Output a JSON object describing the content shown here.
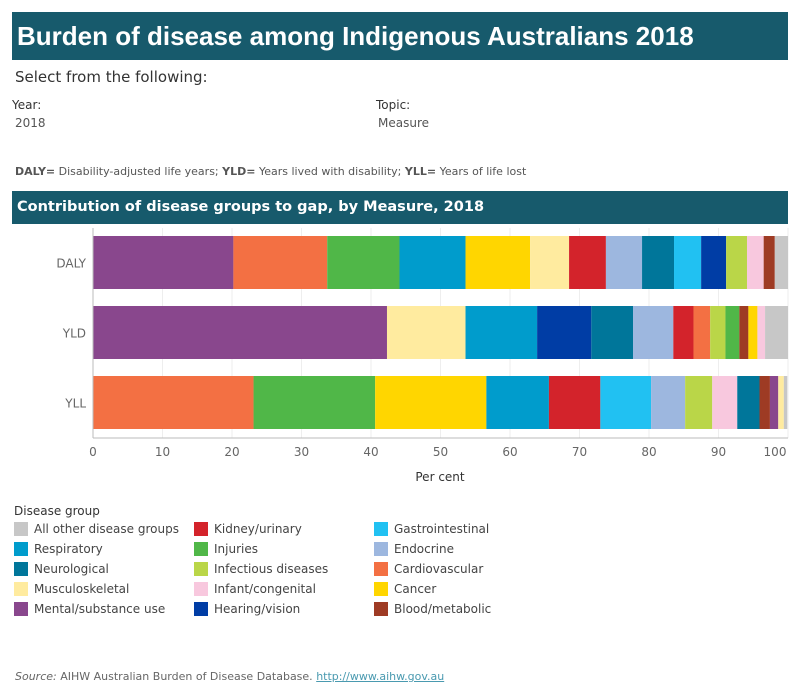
{
  "header": {
    "title": "Burden of disease among Indigenous Australians 2018"
  },
  "filters": {
    "intro": "Select from the following:",
    "year_label": "Year:",
    "year_value": "2018",
    "topic_label": "Topic:",
    "topic_value": "Measure"
  },
  "abbreviations": {
    "daly_key": "DALY=",
    "daly_text": " Disability-adjusted life years; ",
    "yld_key": "YLD=",
    "yld_text": " Years lived with disability; ",
    "yll_key": "YLL=",
    "yll_text": " Years of life lost"
  },
  "chart_title": "Contribution of disease groups to gap, by Measure, 2018",
  "legend": {
    "title": "Disease group",
    "items": [
      {
        "label": "All other disease groups",
        "color": "#c7c7c7"
      },
      {
        "label": "Respiratory",
        "color": "#009ccc"
      },
      {
        "label": "Neurological",
        "color": "#00769a"
      },
      {
        "label": "Musculoskeletal",
        "color": "#ffeb9f"
      },
      {
        "label": "Mental/substance use",
        "color": "#89478d"
      },
      {
        "label": "Kidney/urinary",
        "color": "#d3232b"
      },
      {
        "label": "Injuries",
        "color": "#50b748"
      },
      {
        "label": "Infectious diseases",
        "color": "#bad648"
      },
      {
        "label": "Infant/congenital",
        "color": "#f8c8de"
      },
      {
        "label": "Hearing/vision",
        "color": "#003da5"
      },
      {
        "label": "Gastrointestinal",
        "color": "#21c1f2"
      },
      {
        "label": "Endocrine",
        "color": "#9db7df"
      },
      {
        "label": "Cardiovascular",
        "color": "#f37043"
      },
      {
        "label": "Cancer",
        "color": "#ffd600"
      },
      {
        "label": "Blood/metabolic",
        "color": "#9e3b24"
      }
    ]
  },
  "chart_data": {
    "type": "bar",
    "orientation": "horizontal",
    "stacked": true,
    "xlabel": "Per cent",
    "xlim": [
      0,
      100
    ],
    "xticks": [
      "0",
      "10",
      "20",
      "30",
      "40",
      "50",
      "60",
      "70",
      "80",
      "90",
      "100"
    ],
    "grid": true,
    "categories": [
      "DALY",
      "YLD",
      "YLL"
    ],
    "bars": [
      {
        "category": "DALY",
        "segments": [
          {
            "group": "Mental/substance use",
            "value": 20.2
          },
          {
            "group": "Cardiovascular",
            "value": 13.5
          },
          {
            "group": "Injuries",
            "value": 10.4
          },
          {
            "group": "Respiratory",
            "value": 9.5
          },
          {
            "group": "Cancer",
            "value": 9.3
          },
          {
            "group": "Musculoskeletal",
            "value": 5.6
          },
          {
            "group": "Kidney/urinary",
            "value": 5.3
          },
          {
            "group": "Endocrine",
            "value": 5.2
          },
          {
            "group": "Neurological",
            "value": 4.6
          },
          {
            "group": "Gastrointestinal",
            "value": 3.9
          },
          {
            "group": "Hearing/vision",
            "value": 3.6
          },
          {
            "group": "Infectious diseases",
            "value": 3.0
          },
          {
            "group": "Infant/congenital",
            "value": 2.4
          },
          {
            "group": "Blood/metabolic",
            "value": 1.6
          },
          {
            "group": "All other disease groups",
            "value": 1.9
          }
        ]
      },
      {
        "category": "YLD",
        "segments": [
          {
            "group": "Mental/substance use",
            "value": 42.3
          },
          {
            "group": "Musculoskeletal",
            "value": 11.3
          },
          {
            "group": "Respiratory",
            "value": 10.3
          },
          {
            "group": "Hearing/vision",
            "value": 7.8
          },
          {
            "group": "Neurological",
            "value": 6.0
          },
          {
            "group": "Endocrine",
            "value": 5.8
          },
          {
            "group": "Kidney/urinary",
            "value": 2.9
          },
          {
            "group": "Cardiovascular",
            "value": 2.4
          },
          {
            "group": "Infectious diseases",
            "value": 2.2
          },
          {
            "group": "Injuries",
            "value": 2.0
          },
          {
            "group": "Blood/metabolic",
            "value": 1.3
          },
          {
            "group": "Cancer",
            "value": 1.3
          },
          {
            "group": "Infant/congenital",
            "value": 1.1
          },
          {
            "group": "All other disease groups",
            "value": 3.3
          }
        ]
      },
      {
        "category": "YLL",
        "segments": [
          {
            "group": "Cardiovascular",
            "value": 23.1
          },
          {
            "group": "Injuries",
            "value": 17.5
          },
          {
            "group": "Cancer",
            "value": 16.0
          },
          {
            "group": "Respiratory",
            "value": 9.0
          },
          {
            "group": "Kidney/urinary",
            "value": 7.4
          },
          {
            "group": "Gastrointestinal",
            "value": 7.3
          },
          {
            "group": "Endocrine",
            "value": 4.9
          },
          {
            "group": "Infectious diseases",
            "value": 3.9
          },
          {
            "group": "Infant/congenital",
            "value": 3.6
          },
          {
            "group": "Neurological",
            "value": 3.2
          },
          {
            "group": "Blood/metabolic",
            "value": 1.5
          },
          {
            "group": "Mental/substance use",
            "value": 1.2
          },
          {
            "group": "Musculoskeletal",
            "value": 0.8
          },
          {
            "group": "All other disease groups",
            "value": 0.5
          }
        ]
      }
    ]
  },
  "source": {
    "label": "Source:",
    "text": " AIHW Australian Burden of Disease Database. ",
    "link": "http://www.aihw.gov.au"
  }
}
